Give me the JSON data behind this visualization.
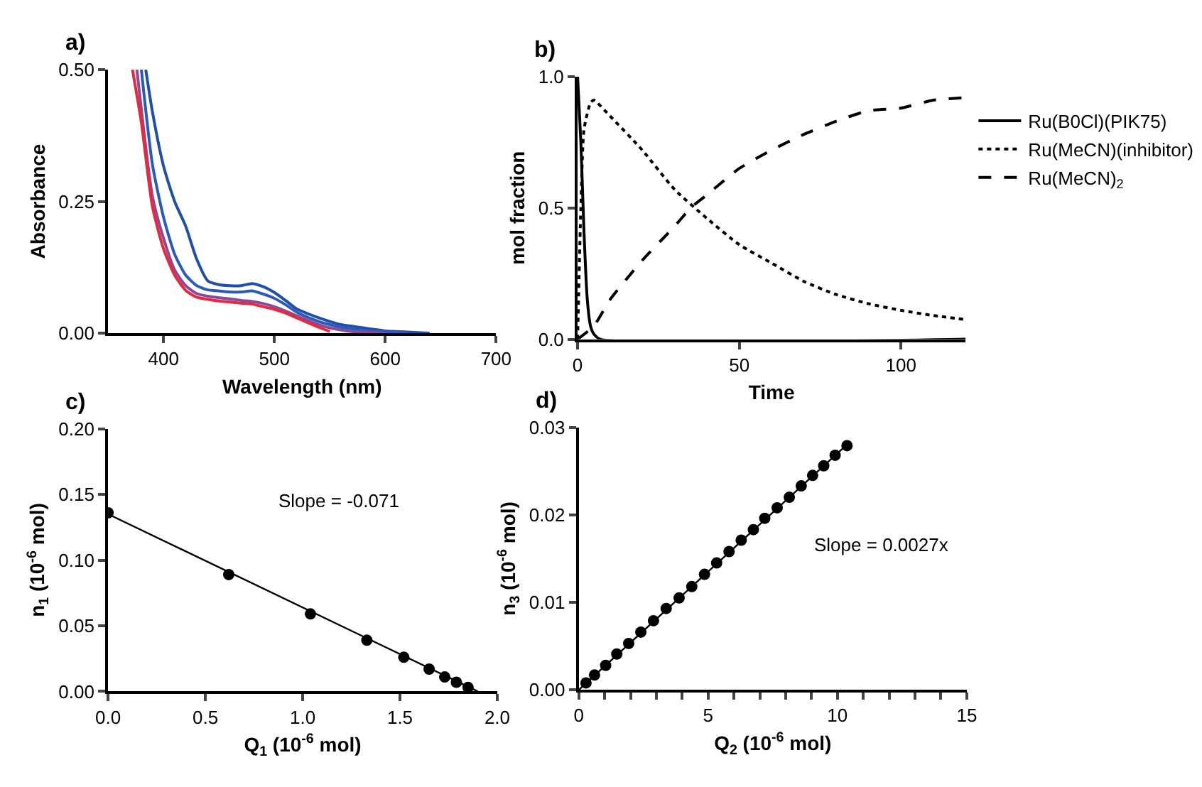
{
  "chart_data": [
    {
      "type": "line",
      "title": "a)",
      "xlabel": "Wavelength (nm)",
      "ylabel": "Absorbance",
      "xlim": [
        350,
        700
      ],
      "xticks": [
        400,
        500,
        600,
        700
      ],
      "ylim": [
        0,
        0.5
      ],
      "yticks": [
        {
          "value": 0,
          "label": "0.00"
        },
        {
          "value": 0.25,
          "label": "0.25"
        },
        {
          "value": 0.5,
          "label": "0.50"
        }
      ],
      "legend": false,
      "series": [
        {
          "color": "#1f4fa8",
          "x": [
            384,
            390,
            400,
            410,
            420,
            430,
            440,
            450,
            460,
            470,
            480,
            490,
            500,
            510,
            520,
            530,
            540,
            550,
            560,
            570,
            580,
            590,
            600,
            610,
            620,
            640
          ],
          "values": [
            0.5,
            0.42,
            0.317,
            0.25,
            0.203,
            0.14,
            0.099,
            0.092,
            0.09,
            0.09,
            0.094,
            0.088,
            0.077,
            0.062,
            0.046,
            0.037,
            0.029,
            0.022,
            0.016,
            0.013,
            0.01,
            0.007,
            0.004,
            0.003,
            0.002,
            0
          ]
        },
        {
          "color": "#2a5bb8",
          "x": [
            380,
            390,
            400,
            410,
            420,
            430,
            440,
            450,
            460,
            470,
            480,
            490,
            500,
            510,
            520,
            530,
            540,
            550,
            560,
            570,
            580,
            590,
            600,
            620
          ],
          "values": [
            0.5,
            0.32,
            0.22,
            0.15,
            0.11,
            0.09,
            0.082,
            0.08,
            0.078,
            0.078,
            0.08,
            0.074,
            0.066,
            0.054,
            0.04,
            0.03,
            0.022,
            0.016,
            0.011,
            0.008,
            0.006,
            0.004,
            0.002,
            0
          ]
        },
        {
          "color": "#8a4a9a",
          "x": [
            376,
            390,
            400,
            410,
            420,
            430,
            440,
            450,
            460,
            470,
            480,
            490,
            500,
            510,
            520,
            530,
            540,
            550,
            560,
            570,
            580,
            600
          ],
          "values": [
            0.5,
            0.26,
            0.18,
            0.12,
            0.09,
            0.075,
            0.07,
            0.067,
            0.065,
            0.062,
            0.06,
            0.056,
            0.05,
            0.042,
            0.033,
            0.024,
            0.016,
            0.01,
            0.006,
            0.003,
            0.002,
            0
          ]
        },
        {
          "color": "#e8283c",
          "x": [
            372,
            380,
            390,
            400,
            410,
            420,
            430,
            440,
            450,
            460,
            470,
            480,
            490,
            500,
            510,
            520,
            530,
            540,
            550
          ],
          "values": [
            0.5,
            0.4,
            0.24,
            0.16,
            0.11,
            0.081,
            0.068,
            0.064,
            0.061,
            0.059,
            0.057,
            0.055,
            0.05,
            0.045,
            0.038,
            0.029,
            0.02,
            0.011,
            0.003
          ]
        }
      ]
    },
    {
      "type": "line",
      "title": "b)",
      "xlabel": "Time",
      "ylabel": "mol fraction",
      "xlim": [
        0,
        120
      ],
      "xticks": [
        0,
        50,
        100
      ],
      "ylim": [
        0,
        1
      ],
      "yticks": [
        {
          "value": 0,
          "label": "0.0"
        },
        {
          "value": 0.5,
          "label": "0.5"
        },
        {
          "value": 1,
          "label": "1.0"
        }
      ],
      "legend": "right",
      "series": [
        {
          "name": "Ru(B0Cl)(PIK75)",
          "color": "#000000",
          "line_style": "solid",
          "x": [
            0,
            1,
            2,
            3,
            4,
            5,
            7,
            120
          ],
          "values": [
            1.0,
            0.75,
            0.4,
            0.15,
            0.05,
            0.02,
            0,
            0
          ]
        },
        {
          "name": "Ru(MeCN)(inhibitor)",
          "color": "#000000",
          "line_style": "dotted",
          "x": [
            0,
            1,
            2,
            4,
            5,
            10,
            20,
            30,
            40,
            50,
            60,
            70,
            80,
            90,
            100,
            110,
            120
          ],
          "values": [
            0,
            0.5,
            0.8,
            0.9,
            0.91,
            0.85,
            0.72,
            0.57,
            0.46,
            0.36,
            0.29,
            0.22,
            0.17,
            0.135,
            0.11,
            0.09,
            0.075
          ]
        },
        {
          "name": "Ru(MeCN)$_{2}$",
          "color": "#000000",
          "line_style": "dashed",
          "x": [
            0,
            5,
            10,
            20,
            30,
            35,
            40,
            50,
            60,
            70,
            80,
            90,
            100,
            110,
            120
          ],
          "values": [
            0,
            0.05,
            0.15,
            0.3,
            0.43,
            0.5,
            0.55,
            0.65,
            0.72,
            0.78,
            0.83,
            0.87,
            0.88,
            0.91,
            0.92
          ]
        }
      ]
    },
    {
      "type": "scatter",
      "title": "c)",
      "xlabel": "Q$_{1}$ (10$^{-6}$ mol)",
      "ylabel": "n$_{1}$ (10$^{-6}$ mol)",
      "xlim": [
        0,
        2
      ],
      "xticks": [
        {
          "value": 0,
          "label": "0.0"
        },
        0.5,
        {
          "value": 1,
          "label": "1.0"
        },
        1.5,
        {
          "value": 2,
          "label": "2.0"
        }
      ],
      "ylim": [
        0,
        0.2
      ],
      "yticks": [
        {
          "value": 0,
          "label": "0.00"
        },
        0.05,
        {
          "value": 0.1,
          "label": "0.10"
        },
        0.15,
        {
          "value": 0.2,
          "label": "0.20"
        }
      ],
      "legend": false,
      "annotations": [
        "Slope = -0.071"
      ],
      "series": [
        {
          "type": "line",
          "color": "#000000",
          "x": [
            0,
            1.9
          ],
          "values": [
            0.135,
            0
          ]
        },
        {
          "type": "scatter",
          "marker": "circle",
          "color": "#000000",
          "x": [
            0,
            0.62,
            1.04,
            1.33,
            1.52,
            1.65,
            1.73,
            1.79,
            1.85
          ],
          "values": [
            0.136,
            0.089,
            0.059,
            0.039,
            0.026,
            0.017,
            0.011,
            0.007,
            0.003
          ]
        }
      ]
    },
    {
      "type": "scatter",
      "title": "d)",
      "xlabel": "Q$_{2}$ (10$^{-6}$ mol)",
      "ylabel": "n$_{3}$ (10$^{-6}$ mol)",
      "xlim": [
        0,
        15
      ],
      "xticks": [
        0,
        {
          "value": 1,
          "label": null
        },
        {
          "value": 2,
          "label": null
        },
        {
          "value": 3,
          "label": null
        },
        {
          "value": 4,
          "label": null
        },
        5,
        {
          "value": 6,
          "label": null
        },
        {
          "value": 7,
          "label": null
        },
        {
          "value": 8,
          "label": null
        },
        {
          "value": 9,
          "label": null
        },
        10,
        {
          "value": 11,
          "label": null
        },
        {
          "value": 12,
          "label": null
        },
        {
          "value": 13,
          "label": null
        },
        {
          "value": 14,
          "label": null
        },
        15
      ],
      "ylim": [
        0,
        0.03
      ],
      "yticks": [
        {
          "value": 0,
          "label": "0.00"
        },
        0.01,
        0.02,
        0.03
      ],
      "legend": false,
      "annotations": [
        "Slope = 0.0027x"
      ],
      "series": [
        {
          "type": "line",
          "color": "#000000",
          "x": [
            0,
            10.4
          ],
          "values": [
            0,
            0.0281
          ]
        },
        {
          "type": "scatter",
          "marker": "circle",
          "color": "#000000",
          "x": [
            0.28,
            0.61,
            1.04,
            1.47,
            1.93,
            2.4,
            2.89,
            3.38,
            3.88,
            4.37,
            4.86,
            5.33,
            5.81,
            6.28,
            6.75,
            7.19,
            7.67,
            8.14,
            8.6,
            9.04,
            9.47,
            9.91,
            10.37
          ],
          "values": [
            0.0008,
            0.0017,
            0.0028,
            0.0041,
            0.0053,
            0.0066,
            0.0079,
            0.0093,
            0.0105,
            0.0118,
            0.0132,
            0.0145,
            0.0158,
            0.0171,
            0.0183,
            0.0196,
            0.0208,
            0.022,
            0.0233,
            0.0245,
            0.0256,
            0.0268,
            0.0279
          ]
        }
      ]
    }
  ]
}
